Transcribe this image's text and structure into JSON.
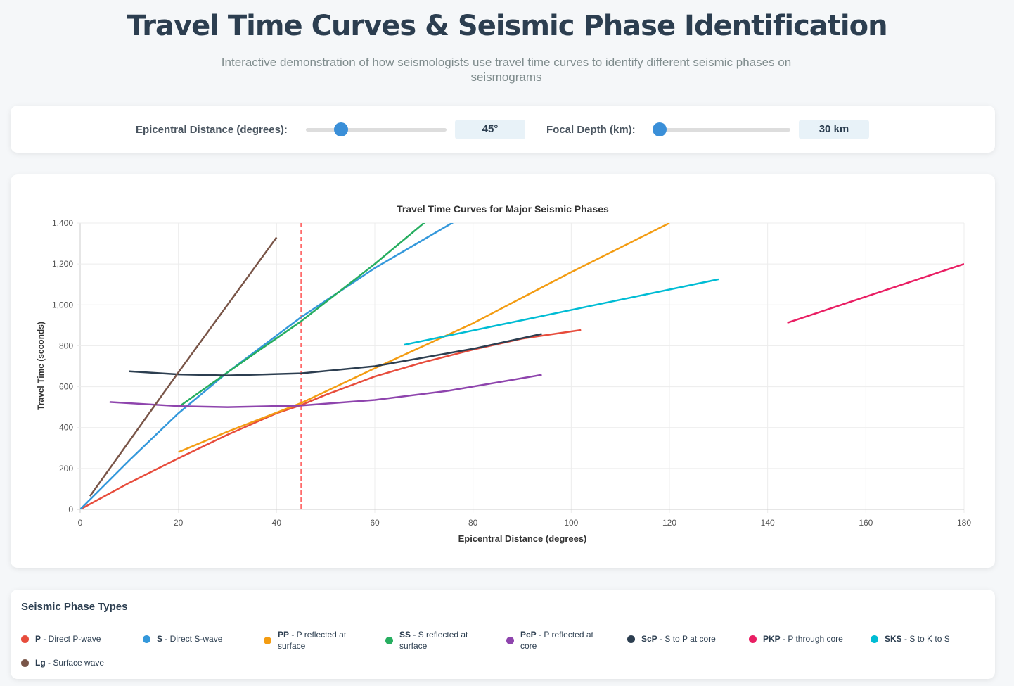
{
  "header": {
    "title": "Travel Time Curves & Seismic Phase Identification",
    "subtitle": "Interactive demonstration of how seismologists use travel time curves to identify different seismic phases on seismograms"
  },
  "controls": {
    "distance_label": "Epicentral Distance (degrees):",
    "distance_value": "45°",
    "distance": 45,
    "distance_range": [
      0,
      180
    ],
    "depth_label": "Focal Depth (km):",
    "depth_value": "30 km",
    "depth": 30,
    "depth_range": [
      0,
      700
    ]
  },
  "chart_data": {
    "type": "line",
    "title": "Travel Time Curves for Major Seismic Phases",
    "xlabel": "Epicentral Distance (degrees)",
    "ylabel": "Travel Time (seconds)",
    "xlim": [
      0,
      180
    ],
    "ylim": [
      0,
      1400
    ],
    "xticks": [
      "0",
      "20",
      "40",
      "60",
      "80",
      "100",
      "120",
      "140",
      "160",
      "180"
    ],
    "yticks": [
      "0",
      "200",
      "400",
      "600",
      "800",
      "1,000",
      "1,200",
      "1,400"
    ],
    "grid": true,
    "marker_line": {
      "x": 45,
      "color": "#ff6b6b",
      "style": "dashed"
    },
    "series": [
      {
        "name": "P",
        "color": "#e74c3c",
        "x": [
          0,
          10,
          20,
          30,
          40,
          45,
          50,
          60,
          70,
          80,
          90,
          102
        ],
        "y": [
          0,
          130,
          250,
          365,
          470,
          510,
          560,
          650,
          720,
          781,
          835,
          877
        ]
      },
      {
        "name": "S",
        "color": "#3498db",
        "x": [
          0,
          10,
          20,
          30,
          40,
          45,
          50,
          60,
          70,
          80
        ],
        "y": [
          0,
          240,
          470,
          670,
          850,
          940,
          1020,
          1180,
          1320,
          1460
        ]
      },
      {
        "name": "PP",
        "color": "#f39c12",
        "x": [
          20,
          30,
          45,
          60,
          80,
          100,
          120
        ],
        "y": [
          280,
          380,
          520,
          690,
          910,
          1160,
          1400
        ]
      },
      {
        "name": "SS",
        "color": "#27ae60",
        "x": [
          20,
          30,
          45,
          60,
          70,
          80
        ],
        "y": [
          500,
          670,
          920,
          1200,
          1400,
          1560
        ]
      },
      {
        "name": "PcP",
        "color": "#8e44ad",
        "x": [
          6,
          20,
          30,
          45,
          60,
          75,
          94
        ],
        "y": [
          525,
          505,
          500,
          508,
          535,
          580,
          658
        ]
      },
      {
        "name": "ScP",
        "color": "#2c3e50",
        "x": [
          10,
          20,
          30,
          45,
          60,
          80,
          94
        ],
        "y": [
          675,
          660,
          655,
          665,
          700,
          785,
          858
        ]
      },
      {
        "name": "PKP",
        "color": "#e91e63",
        "x": [
          144,
          180
        ],
        "y": [
          912,
          1200
        ]
      },
      {
        "name": "SKS",
        "color": "#00bcd4",
        "x": [
          66,
          130
        ],
        "y": [
          805,
          1125
        ]
      },
      {
        "name": "Lg",
        "color": "#795548",
        "x": [
          2,
          20,
          40
        ],
        "y": [
          65,
          670,
          1330
        ]
      }
    ]
  },
  "legend": {
    "title": "Seismic Phase Types",
    "items": [
      {
        "code": "P",
        "desc": " - Direct P-wave",
        "color": "#e74c3c"
      },
      {
        "code": "S",
        "desc": " - Direct S-wave",
        "color": "#3498db"
      },
      {
        "code": "PP",
        "desc": " - P reflected at surface",
        "color": "#f39c12"
      },
      {
        "code": "SS",
        "desc": " - S reflected at surface",
        "color": "#27ae60"
      },
      {
        "code": "PcP",
        "desc": " - P reflected at core",
        "color": "#8e44ad"
      },
      {
        "code": "ScP",
        "desc": " - S to P at core",
        "color": "#2c3e50"
      },
      {
        "code": "PKP",
        "desc": " - P through core",
        "color": "#e91e63"
      },
      {
        "code": "SKS",
        "desc": " - S to K to S",
        "color": "#00bcd4"
      },
      {
        "code": "Lg",
        "desc": " - Surface wave",
        "color": "#795548"
      }
    ]
  }
}
